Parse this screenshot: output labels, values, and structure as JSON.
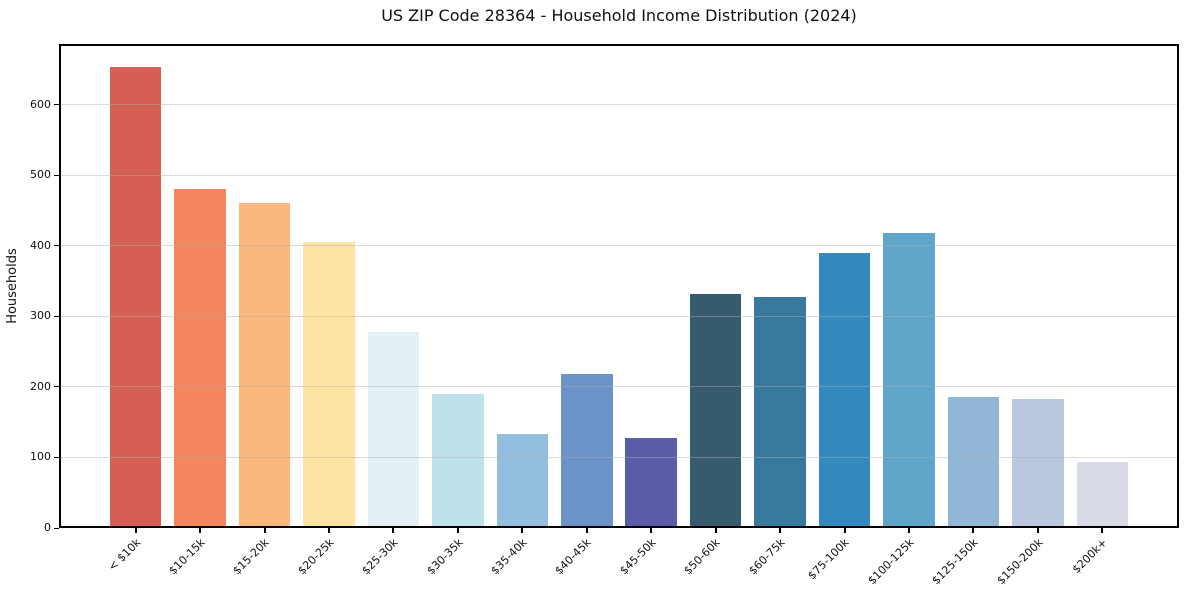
{
  "chart_data": {
    "type": "bar",
    "title": "US ZIP Code 28364 - Household Income Distribution (2024)",
    "xlabel": "",
    "ylabel": "Households",
    "categories": [
      "< $10k",
      "$10-15k",
      "$15-20k",
      "$20-25k",
      "$25-30k",
      "$30-35k",
      "$35-40k",
      "$40-45k",
      "$45-50k",
      "$50-60k",
      "$60-75k",
      "$75-100k",
      "$100-125k",
      "$125-150k",
      "$150-200k",
      "$200k+"
    ],
    "values": [
      653,
      480,
      460,
      405,
      278,
      190,
      133,
      219,
      128,
      331,
      328,
      390,
      418,
      186,
      183,
      94
    ],
    "bar_colors": [
      "#d65f55",
      "#f4875f",
      "#fbb87c",
      "#fee3a2",
      "#e3f0f5",
      "#bde2ec",
      "#93bedd",
      "#6b93c8",
      "#5b5caa",
      "#365a6e",
      "#38799e",
      "#348abe",
      "#5fa6ca",
      "#92b7d6",
      "#b9c8de",
      "#d9dbe9"
    ],
    "ylim": [
      0,
      686
    ],
    "yticks": [
      0,
      100,
      200,
      300,
      400,
      500,
      600
    ],
    "grid": "horizontal-over-bars",
    "legend": "none",
    "x_tick_rotation": 45,
    "frame": "full-box-black",
    "background_color": "#ffffff",
    "grid_color": "#b0b0b0"
  }
}
